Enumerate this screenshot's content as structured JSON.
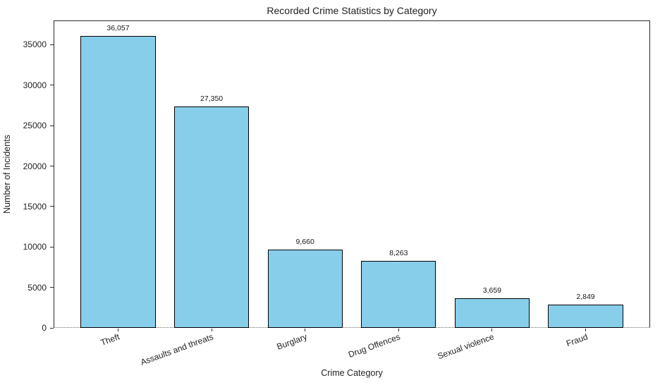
{
  "chart_data": {
    "type": "bar",
    "title": "Recorded Crime Statistics by Category",
    "xlabel": "Crime Category",
    "ylabel": "Number of Incidents",
    "categories": [
      "Theft",
      "Assaults and threats",
      "Burglary",
      "Drug Offences",
      "Sexual violence",
      "Fraud"
    ],
    "values": [
      36057,
      27350,
      9660,
      8263,
      3659,
      2849
    ],
    "value_labels": [
      "36,057",
      "27,350",
      "9,660",
      "8,263",
      "3,659",
      "2,849"
    ],
    "ylim": [
      0,
      38000
    ],
    "yticks": [
      0,
      5000,
      10000,
      15000,
      20000,
      25000,
      30000,
      35000
    ],
    "ytick_labels": [
      "0",
      "5000",
      "10000",
      "15000",
      "20000",
      "25000",
      "30000",
      "35000"
    ],
    "x_tick_rotation_deg": 20,
    "bar_width_fraction": 0.8,
    "grid": false,
    "legend": null,
    "colors": {
      "bar_fill": "#87CEEB",
      "bar_edge": "#000000",
      "text": "#222222",
      "spine": "#2b2b2b",
      "background": "#ffffff"
    }
  }
}
